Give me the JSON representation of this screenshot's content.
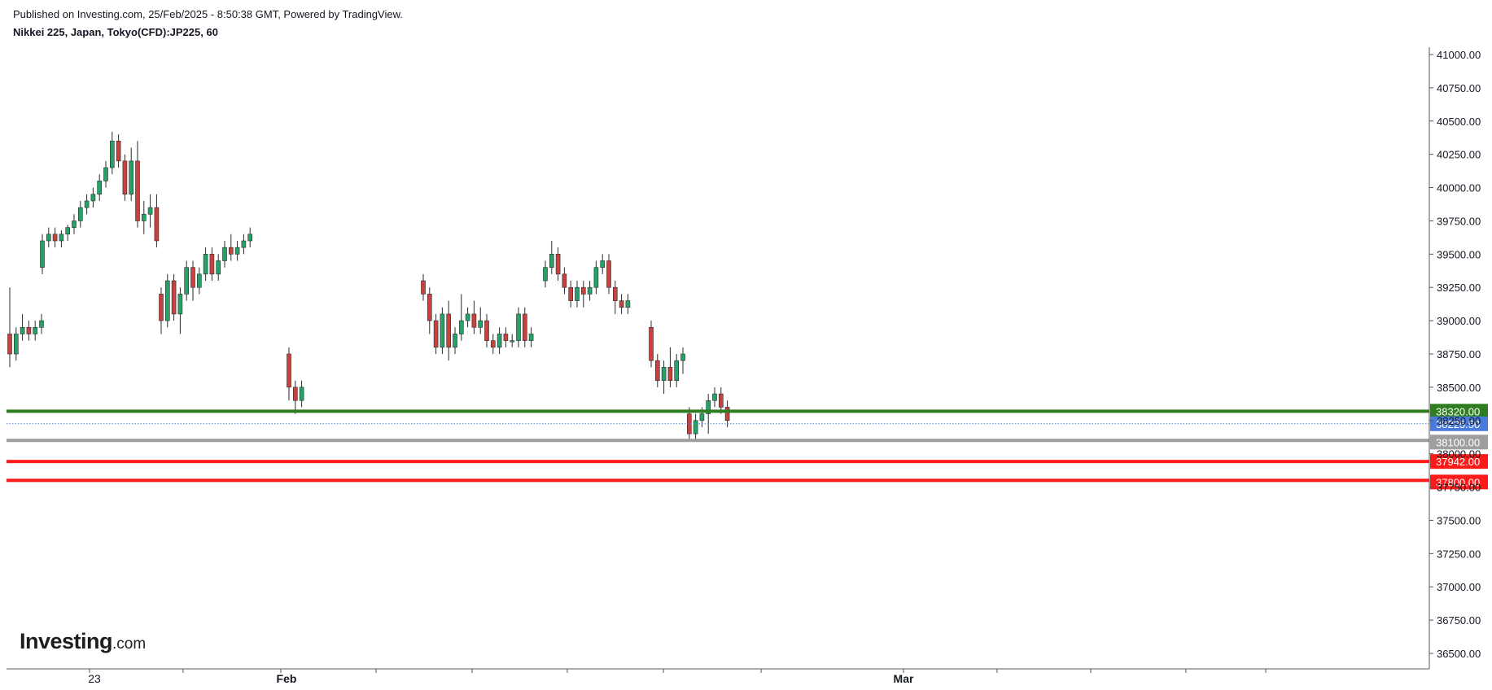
{
  "header": {
    "published": "Published on Investing.com, 25/Feb/2025 - 8:50:38 GMT, Powered by TradingView.",
    "symbol": "Nikkei 225, Japan, Tokyo(CFD):JP225, 60"
  },
  "logo": {
    "main": "Investing",
    "suffix": ".com"
  },
  "colors": {
    "up": "#26a269",
    "down": "#c8413e",
    "wick": "#2b2b2b",
    "green_level": "#2e7d1e",
    "grey_level": "#9e9e9e",
    "red_level": "#ff1a1a",
    "current_price": "#4a7bdc"
  },
  "chart_data": {
    "type": "candlestick",
    "y_axis": {
      "ylim": [
        36400,
        41100
      ],
      "ticks": [
        "41000.00",
        "40750.00",
        "40500.00",
        "40250.00",
        "40000.00",
        "39750.00",
        "39500.00",
        "39250.00",
        "39000.00",
        "38750.00",
        "38500.00",
        "38250.00",
        "38000.00",
        "37750.00",
        "37500.00",
        "37250.00",
        "37000.00",
        "36750.00",
        "36500.00"
      ],
      "tick_values": [
        41000,
        40750,
        40500,
        40250,
        40000,
        39750,
        39500,
        39250,
        39000,
        38750,
        38500,
        38250,
        38000,
        37750,
        37500,
        37250,
        37000,
        36750,
        36500
      ]
    },
    "x_axis": {
      "labels": [
        "23",
        "Feb",
        "Mar"
      ]
    },
    "levels": [
      {
        "value": 38320,
        "label": "38320.00",
        "color": "#2e7d1e",
        "style": "solid"
      },
      {
        "value": 38225.5,
        "label": "38225.50",
        "color": "#4a7bdc",
        "style": "dotted"
      },
      {
        "value": 38100,
        "label": "38100.00",
        "color": "#9e9e9e",
        "style": "solid"
      },
      {
        "value": 37942,
        "label": "37942.00",
        "color": "#ff1a1a",
        "style": "solid"
      },
      {
        "value": 37800,
        "label": "37800.00",
        "color": "#ff1a1a",
        "style": "solid"
      }
    ],
    "candles": [
      [
        38900,
        39250,
        38650,
        38750
      ],
      [
        38750,
        38950,
        38700,
        38900
      ],
      [
        38900,
        39050,
        38850,
        38950
      ],
      [
        38950,
        39000,
        38850,
        38900
      ],
      [
        38900,
        39000,
        38850,
        38950
      ],
      [
        38950,
        39050,
        38900,
        39000
      ],
      [
        39400,
        39650,
        39350,
        39600
      ],
      [
        39600,
        39700,
        39550,
        39650
      ],
      [
        39650,
        39700,
        39550,
        39600
      ],
      [
        39600,
        39680,
        39550,
        39650
      ],
      [
        39650,
        39720,
        39600,
        39700
      ],
      [
        39700,
        39800,
        39650,
        39750
      ],
      [
        39750,
        39900,
        39700,
        39850
      ],
      [
        39850,
        39950,
        39800,
        39900
      ],
      [
        39900,
        40000,
        39850,
        39950
      ],
      [
        39950,
        40100,
        39900,
        40050
      ],
      [
        40050,
        40200,
        40000,
        40150
      ],
      [
        40150,
        40420,
        40100,
        40350
      ],
      [
        40350,
        40400,
        40150,
        40200
      ],
      [
        40200,
        40250,
        39900,
        39950
      ],
      [
        39950,
        40300,
        39900,
        40200
      ],
      [
        40200,
        40350,
        39700,
        39750
      ],
      [
        39750,
        39900,
        39650,
        39800
      ],
      [
        39800,
        39950,
        39700,
        39850
      ],
      [
        39850,
        39950,
        39550,
        39600
      ],
      [
        39200,
        39250,
        38900,
        39000
      ],
      [
        39000,
        39350,
        38950,
        39300
      ],
      [
        39300,
        39350,
        39000,
        39050
      ],
      [
        39050,
        39250,
        38900,
        39200
      ],
      [
        39200,
        39450,
        39150,
        39400
      ],
      [
        39400,
        39450,
        39150,
        39250
      ],
      [
        39250,
        39400,
        39200,
        39350
      ],
      [
        39350,
        39550,
        39300,
        39500
      ],
      [
        39500,
        39550,
        39300,
        39350
      ],
      [
        39350,
        39500,
        39300,
        39450
      ],
      [
        39450,
        39600,
        39400,
        39550
      ],
      [
        39550,
        39650,
        39450,
        39500
      ],
      [
        39500,
        39600,
        39450,
        39550
      ],
      [
        39550,
        39650,
        39500,
        39600
      ],
      [
        39600,
        39700,
        39550,
        39650
      ],
      [
        38750,
        38800,
        38400,
        38500
      ],
      [
        38500,
        38550,
        38300,
        38400
      ],
      [
        38400,
        38550,
        38350,
        38500
      ],
      [
        39300,
        39350,
        39150,
        39200
      ],
      [
        39200,
        39250,
        38900,
        39000
      ],
      [
        39000,
        39050,
        38750,
        38800
      ],
      [
        38800,
        39100,
        38750,
        39050
      ],
      [
        39050,
        39150,
        38700,
        38800
      ],
      [
        38800,
        38950,
        38750,
        38900
      ],
      [
        38900,
        39200,
        38850,
        39000
      ],
      [
        39000,
        39100,
        38950,
        39050
      ],
      [
        39050,
        39150,
        38900,
        38950
      ],
      [
        38950,
        39100,
        38900,
        39000
      ],
      [
        39000,
        39050,
        38800,
        38850
      ],
      [
        38850,
        38900,
        38750,
        38800
      ],
      [
        38800,
        38950,
        38750,
        38900
      ],
      [
        38900,
        38950,
        38800,
        38850
      ],
      [
        38850,
        38900,
        38800,
        38850
      ],
      [
        38850,
        39100,
        38800,
        39050
      ],
      [
        39050,
        39100,
        38800,
        38850
      ],
      [
        38850,
        38950,
        38800,
        38900
      ],
      [
        39300,
        39450,
        39250,
        39400
      ],
      [
        39400,
        39600,
        39350,
        39500
      ],
      [
        39500,
        39550,
        39300,
        39350
      ],
      [
        39350,
        39400,
        39200,
        39250
      ],
      [
        39250,
        39300,
        39100,
        39150
      ],
      [
        39150,
        39300,
        39100,
        39250
      ],
      [
        39250,
        39300,
        39100,
        39200
      ],
      [
        39200,
        39300,
        39150,
        39250
      ],
      [
        39250,
        39450,
        39200,
        39400
      ],
      [
        39400,
        39500,
        39350,
        39450
      ],
      [
        39450,
        39500,
        39200,
        39250
      ],
      [
        39250,
        39300,
        39050,
        39150
      ],
      [
        39150,
        39200,
        39050,
        39100
      ],
      [
        39100,
        39200,
        39050,
        39150
      ],
      [
        38950,
        39000,
        38650,
        38700
      ],
      [
        38700,
        38750,
        38500,
        38550
      ],
      [
        38550,
        38700,
        38450,
        38650
      ],
      [
        38650,
        38800,
        38500,
        38550
      ],
      [
        38550,
        38750,
        38500,
        38700
      ],
      [
        38700,
        38800,
        38600,
        38750
      ],
      [
        38300,
        38350,
        38100,
        38150
      ],
      [
        38150,
        38300,
        38100,
        38250
      ],
      [
        38250,
        38350,
        38200,
        38300
      ],
      [
        38300,
        38450,
        38150,
        38400
      ],
      [
        38400,
        38500,
        38350,
        38450
      ],
      [
        38450,
        38500,
        38300,
        38350
      ],
      [
        38350,
        38400,
        38200,
        38250
      ]
    ]
  }
}
